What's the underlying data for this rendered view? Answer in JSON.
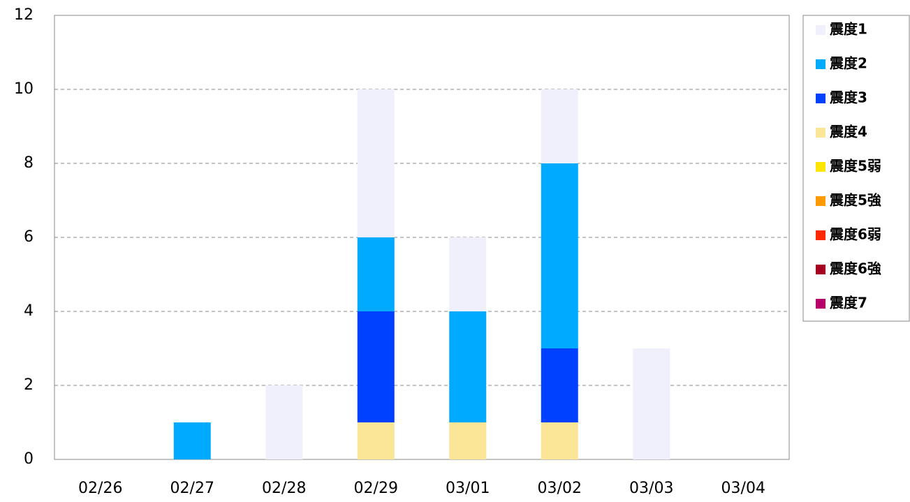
{
  "chart_data": {
    "type": "stacked_bar",
    "categories": [
      "02/26",
      "02/27",
      "02/28",
      "02/29",
      "03/01",
      "03/02",
      "03/03",
      "03/04"
    ],
    "series": [
      {
        "name": "震度1",
        "color": "#f0f0fc",
        "values": [
          0,
          0,
          2,
          4,
          2,
          2,
          3,
          0
        ]
      },
      {
        "name": "震度2",
        "color": "#00aaff",
        "values": [
          0,
          1,
          0,
          2,
          3,
          5,
          0,
          0
        ]
      },
      {
        "name": "震度3",
        "color": "#0040ff",
        "values": [
          0,
          0,
          0,
          3,
          0,
          2,
          0,
          0
        ]
      },
      {
        "name": "震度4",
        "color": "#fae696",
        "values": [
          0,
          0,
          0,
          1,
          1,
          1,
          0,
          0
        ]
      },
      {
        "name": "震度5弱",
        "color": "#ffe600",
        "values": [
          0,
          0,
          0,
          0,
          0,
          0,
          0,
          0
        ]
      },
      {
        "name": "震度5強",
        "color": "#ff9900",
        "values": [
          0,
          0,
          0,
          0,
          0,
          0,
          0,
          0
        ]
      },
      {
        "name": "震度6弱",
        "color": "#ff2800",
        "values": [
          0,
          0,
          0,
          0,
          0,
          0,
          0,
          0
        ]
      },
      {
        "name": "震度6強",
        "color": "#a50021",
        "values": [
          0,
          0,
          0,
          0,
          0,
          0,
          0,
          0
        ]
      },
      {
        "name": "震度7",
        "color": "#b40068",
        "values": [
          0,
          0,
          0,
          0,
          0,
          0,
          0,
          0
        ]
      }
    ],
    "ylim": [
      0,
      12
    ],
    "yticks": [
      0,
      2,
      4,
      6,
      8,
      10,
      12
    ],
    "grid": true,
    "legend": "right"
  }
}
